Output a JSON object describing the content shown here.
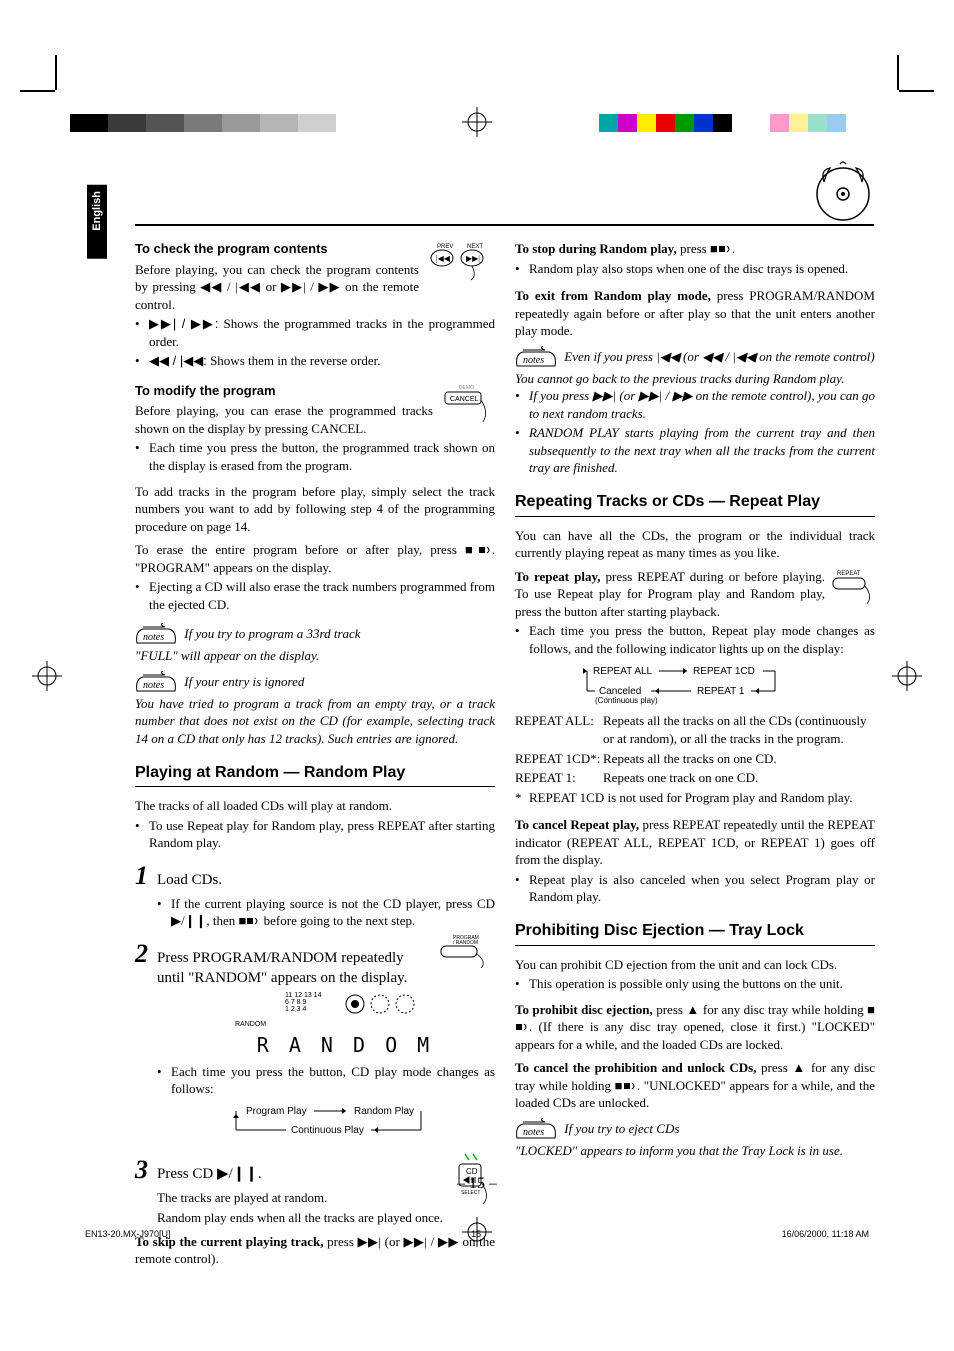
{
  "lang_tab": "English",
  "colorbar_left": [
    "#000000",
    "#000000",
    "#3a3a3a",
    "#3a3a3a",
    "#555555",
    "#555555",
    "#7a7a7a",
    "#7a7a7a",
    "#9a9a9a",
    "#9a9a9a",
    "#b5b5b5",
    "#b5b5b5",
    "#d0d0d0",
    "#d0d0d0",
    "#ffffff"
  ],
  "colorbar_right": [
    "#00a5a5",
    "#cc00cc",
    "#ffee00",
    "#e60000",
    "#009900",
    "#0033cc",
    "#000000",
    "#ffffff",
    "#ffffff",
    "#ff99cc",
    "#fff099",
    "#99e0cc",
    "#99ccf0",
    "#ffffff",
    "#ffffff"
  ],
  "left": {
    "check_head": "To check the program contents",
    "check_p1": "Before playing, you can check the program contents by pressing ◀◀ / |◀◀ or ▶▶| / ▶▶ on the remote control.",
    "check_b1a": "▶▶| / ▶▶:",
    "check_b1b": "Shows the programmed tracks in the programmed order.",
    "check_b2a": "◀◀ / |◀◀:",
    "check_b2b": "Shows them in the reverse order.",
    "modify_head": "To modify the program",
    "modify_p1": "Before playing, you can erase the programmed tracks shown on the display by pressing CANCEL.",
    "modify_b1": "Each time you press the button, the programmed track shown on the display is erased from the program.",
    "modify_p2": "To add tracks in the program before play, simply select the track numbers you want to add by following step 4 of the programming procedure on page 14.",
    "modify_p3": "To erase the entire program before or after play, press ■",
    "modify_p3b": ". \"PROGRAM\" appears on the display.",
    "modify_b2": "Ejecting a CD will also erase the track numbers programmed from the ejected CD.",
    "note1_head": "If you try to program a 33rd track",
    "note1_body": "\"FULL\" will appear on the display.",
    "note2_head": "If your entry is ignored",
    "note2_body": "You have tried to program a track from an empty tray, or a track number that does not exist on the CD (for example, selecting track 14 on a CD that only has 12 tracks). Such entries are ignored.",
    "random_section": "Playing at Random — Random Play",
    "random_p1": "The tracks of all loaded CDs will play at random.",
    "random_b1": "To use Repeat play for Random play, press REPEAT after starting Random play.",
    "step1": "Load CDs.",
    "step1_b": "If the current playing source is not the CD player, press CD ▶/❙❙, then ■",
    "step1_b2": " before going to the next step.",
    "step2": "Press PROGRAM/RANDOM repeatedly until \"RANDOM\" appears on the display.",
    "display_small": "RANDOM",
    "random_big": "R A N D O M",
    "step2_b": "Each time you press the button, CD play mode changes as follows:",
    "cycle1": "Program Play",
    "cycle2": "Random Play",
    "cycle3": "Continuous Play",
    "step3": "Press CD ▶/❙❙.",
    "step3_p1": "The tracks are played at random.",
    "step3_p2": "Random play ends when all the tracks are played once.",
    "skip_label": "To skip the current playing track,",
    "skip_p": " press ▶▶| (or ▶▶| / ▶▶ on the remote control).",
    "prev_label": "PREV",
    "next_label": "NEXT",
    "demo_label": "DEMO",
    "cancel_label": "CANCEL",
    "progran_label": "PROGRAM\n/ RANDOM",
    "cd_label": "CD"
  },
  "right": {
    "stop_label": "To stop during Random play,",
    "stop_p": " press ■",
    "stop_b1": "Random play also stops when one of the disc trays is opened.",
    "exit_label": "To exit from Random play mode,",
    "exit_p": " press PROGRAM/RANDOM repeatedly again before or after play so that the unit enters another play mode.",
    "note3a": "Even if you press |◀◀ (or ◀◀ / |◀◀ on the remote control) You cannot go back to the previous tracks during Random play.",
    "note3b": "If you press ▶▶| (or ▶▶| / ▶▶ on the remote control), you can go to next random tracks.",
    "note3c": "RANDOM PLAY starts playing from the current tray and then subsequently to the next tray when all the tracks from the current tray are finished.",
    "repeat_section": "Repeating Tracks or CDs — Repeat Play",
    "repeat_p1": "You can have all the CDs, the program or the individual track currently playing repeat as many times as you like.",
    "repeat_label": "To repeat play,",
    "repeat_p2": " press REPEAT during or before playing. To use Repeat play for Program play and Random play, press the button after starting playback.",
    "repeat_b1": "Each time you press the button, Repeat play mode changes as follows, and the following indicator lights up on the display:",
    "r_all": "REPEAT ALL",
    "r_1cd": "REPEAT 1CD",
    "r_cancel": "Canceled",
    "r_cont": "(Continuous play)",
    "r_1": "REPEAT 1",
    "def1_t": "REPEAT ALL:",
    "def1_d": "Repeats all the tracks on all the CDs (continuously or at random), or all the tracks in the program.",
    "def2_t": "REPEAT 1CD*:",
    "def2_d": "Repeats all the tracks on one CD.",
    "def3_t": "REPEAT 1:",
    "def3_d": "Repeats one track on one CD.",
    "def_note": "REPEAT 1CD is not used for Program play and Random play.",
    "cancel_label": "To cancel Repeat play,",
    "cancel_p": " press REPEAT repeatedly until the REPEAT indicator (REPEAT ALL, REPEAT 1CD, or REPEAT 1) goes off from the display.",
    "cancel_b": "Repeat play is also canceled when you select Program play or Random play.",
    "lock_section": "Prohibiting Disc Ejection — Tray Lock",
    "lock_p1": "You can prohibit CD ejection from the unit and can lock CDs.",
    "lock_b1": "This operation is possible only using the buttons on the unit.",
    "lock_on_label": "To prohibit disc ejection,",
    "lock_on_p": " press ▲ for any disc tray while holding ■",
    "lock_on_p2": ". (If there is any disc tray opened, close it first.) \"LOCKED\" appears for a while, and the loaded CDs are locked.",
    "lock_off_label": "To cancel the prohibition and unlock CDs,",
    "lock_off_p": " press ▲ for any disc tray while holding ■",
    "lock_off_p2": ". \"UNLOCKED\" appears for a while, and the loaded CDs are unlocked.",
    "note4_head": "If you try to eject CDs",
    "note4_body": "\"LOCKED\" appears to inform you that the Tray Lock is in use.",
    "repeat_btn": "REPEAT"
  },
  "page_num": "– 15 –",
  "footer_left": "EN13-20.MX-J970[U]",
  "footer_mid": "15",
  "footer_right": "16/06/2000, 11:18 AM"
}
